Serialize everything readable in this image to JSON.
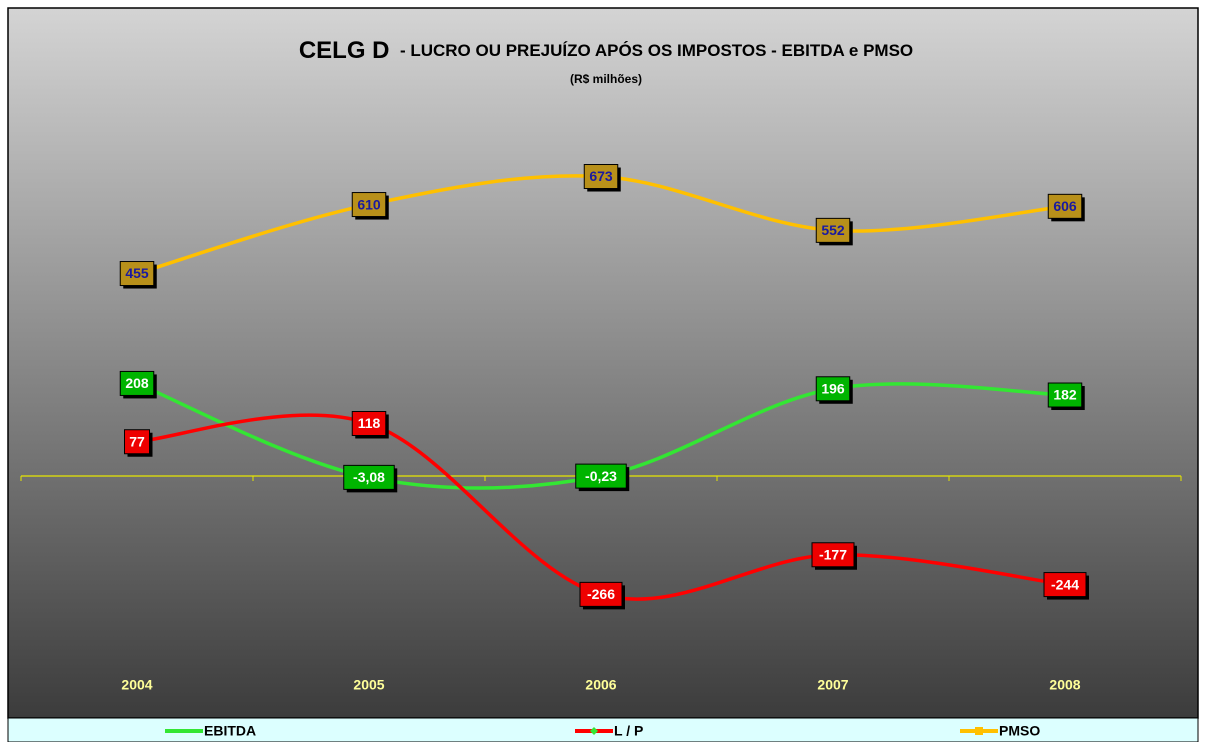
{
  "chart_data": {
    "type": "line",
    "title": [
      "CELG D",
      "- LUCRO OU PREJUÍZO APÓS OS IMPOSTOS - EBITDA e PMSO"
    ],
    "subtitle": "(R$ milhões)",
    "categories": [
      "2004",
      "2005",
      "2006",
      "2007",
      "2008"
    ],
    "series": [
      {
        "name": "EBITDA",
        "color": "#33e633",
        "values": [
          208,
          -3.08,
          -0.23,
          196,
          182
        ],
        "value_labels": [
          "208",
          "-3,08",
          "-0,23",
          "196",
          "182"
        ]
      },
      {
        "name": "L / P",
        "color": "#ff0000",
        "values": [
          77,
          118,
          -266,
          -177,
          -244
        ],
        "value_labels": [
          "77",
          "118",
          "-266",
          "-177",
          "-244"
        ]
      },
      {
        "name": "PMSO",
        "color": "#ffc000",
        "values": [
          455,
          610,
          673,
          552,
          606
        ],
        "value_labels": [
          "455",
          "610",
          "673",
          "552",
          "606"
        ]
      }
    ],
    "ylim": [
      -400,
      800
    ],
    "legend": "bottom"
  }
}
